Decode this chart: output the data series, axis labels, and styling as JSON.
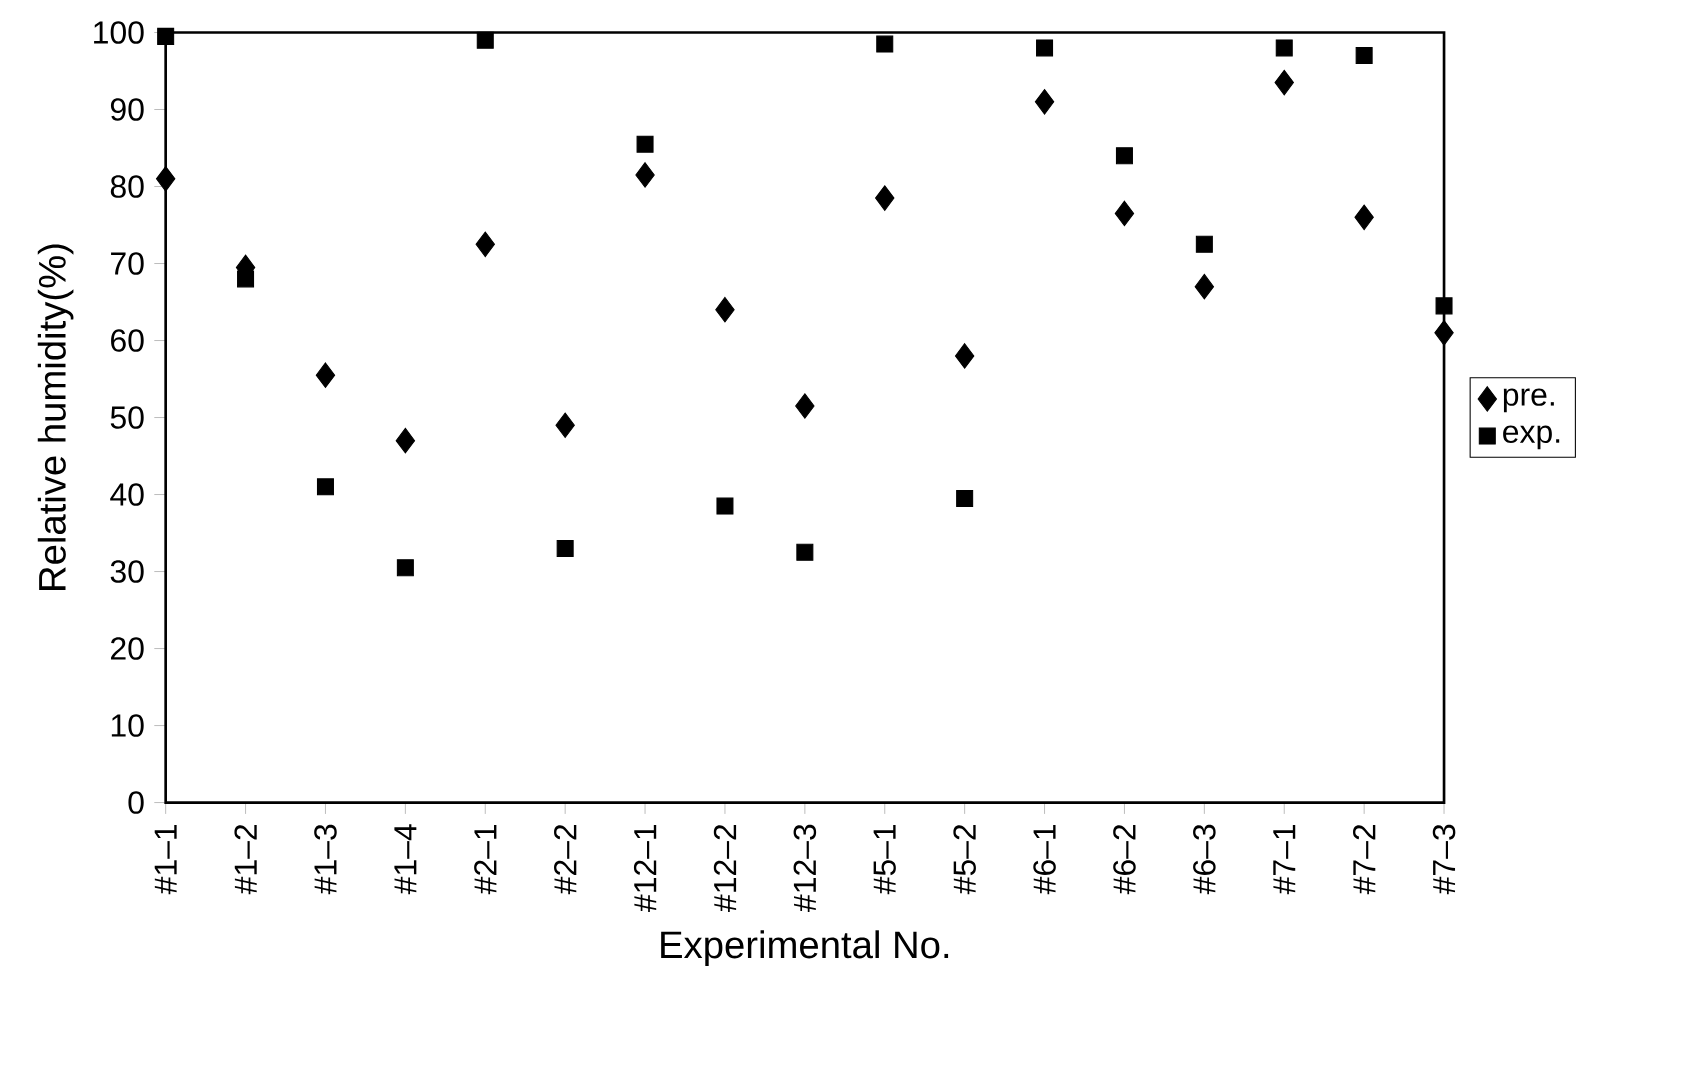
{
  "chart_data": {
    "type": "scatter",
    "xlabel": "Experimental No.",
    "ylabel": "Relative humidity(%)",
    "categories": [
      "#1–1",
      "#1–2",
      "#1–3",
      "#1–4",
      "#2–1",
      "#2–2",
      "#12–1",
      "#12–2",
      "#12–3",
      "#5–1",
      "#5–2",
      "#6–1",
      "#6–2",
      "#6–3",
      "#7–1",
      "#7–2",
      "#7–3"
    ],
    "series": [
      {
        "name": "pre.",
        "color": "#000000",
        "marker": "diamond",
        "values": [
          81,
          69.5,
          55.5,
          47,
          72.5,
          49,
          81.5,
          64,
          51.5,
          78.5,
          58,
          91,
          76.5,
          67,
          93.5,
          76,
          61
        ]
      },
      {
        "name": "exp.",
        "color": "#000000",
        "marker": "square",
        "values": [
          99.5,
          68,
          41,
          30.5,
          99,
          33,
          85.5,
          38.5,
          32.5,
          98.5,
          39.5,
          98,
          84,
          72.5,
          98,
          97,
          64.5
        ]
      }
    ],
    "ylim": [
      0,
      100
    ],
    "yticks": [
      0,
      10,
      20,
      30,
      40,
      50,
      60,
      70,
      80,
      90,
      100
    ],
    "grid": false,
    "legend": "right"
  }
}
